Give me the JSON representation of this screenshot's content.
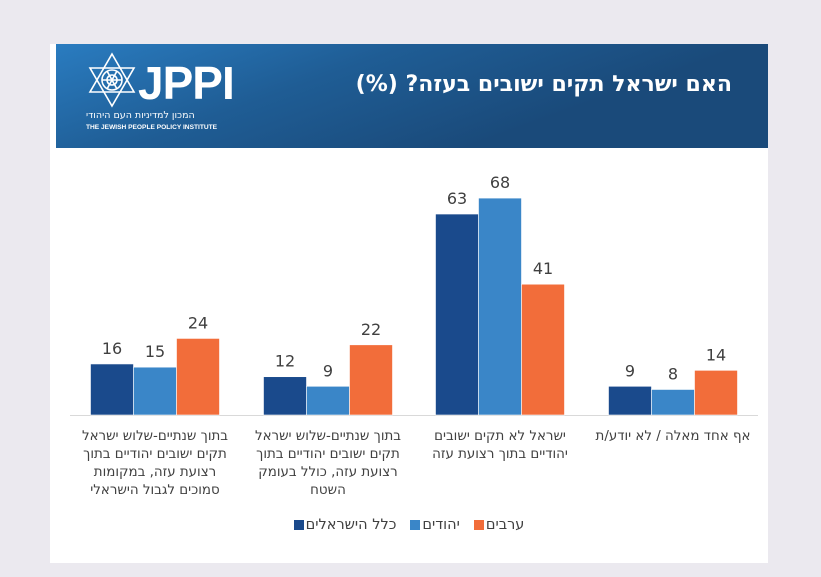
{
  "page": {
    "background": "#EBE9EF"
  },
  "header": {
    "logo": {
      "icon": "star-of-david-icon",
      "name": "JPPI",
      "hebrew_subtitle": "המכון למדיניות העם היהודי",
      "english_subtitle": "THE JEWISH PEOPLE POLICY INSTITUTE"
    },
    "title": "האם ישראל תקים ישובים בעזה? (%)"
  },
  "chart_data": {
    "type": "bar",
    "title": "האם ישראל תקים ישובים בעזה? (%)",
    "xlabel": "",
    "ylabel": "",
    "ylim": [
      0,
      70
    ],
    "grid": false,
    "direction": "rtl",
    "legend_position": "bottom",
    "categories": [
      "אף אחד מאלה / לא יודע/ת",
      "ישראל לא תקים ישובים יהודיים בתוך רצועת עזה",
      "בתוך שנתיים-שלוש ישראל תקים ישובים יהודיים בתוך רצועת עזה, כולל בעומק השטח",
      "בתוך שנתיים-שלוש ישראל תקים ישובים יהודיים בתוך רצועת עזה, במקומות סמוכים לגבול הישראלי"
    ],
    "category_label_lines": [
      [
        "אף אחד מאלה / לא יודע/ת"
      ],
      [
        "ישראל לא תקים ישובים",
        "יהודיים בתוך רצועת עזה"
      ],
      [
        "בתוך שנתיים-שלוש ישראל",
        "תקים ישובים יהודיים בתוך",
        "רצועת עזה, כולל בעומק",
        "השטח"
      ],
      [
        "בתוך שנתיים-שלוש ישראל",
        "תקים ישובים יהודיים בתוך",
        "רצועת עזה, במקומות",
        "סמוכים לגבול הישראלי"
      ]
    ],
    "series": [
      {
        "name": "כלל הישראלים",
        "color": "#1A4A8C",
        "values": [
          9,
          63,
          12,
          16
        ]
      },
      {
        "name": "יהודים",
        "color": "#3A86C8",
        "values": [
          8,
          68,
          9,
          15
        ]
      },
      {
        "name": "ערבים",
        "color": "#F26D3A",
        "values": [
          14,
          41,
          22,
          24
        ]
      }
    ],
    "data_labels": true
  }
}
